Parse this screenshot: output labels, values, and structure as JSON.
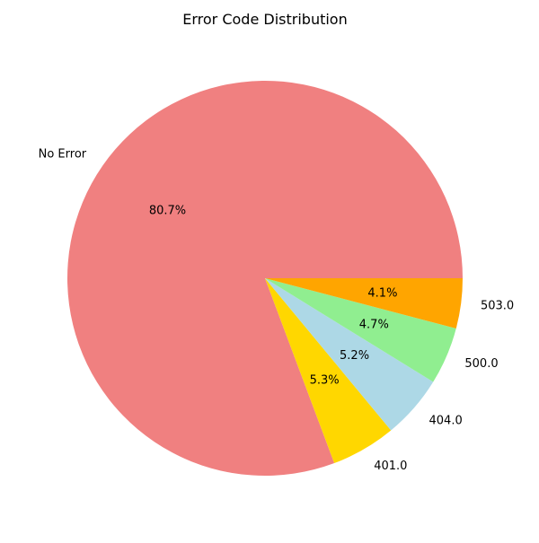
{
  "chart_data": {
    "type": "pie",
    "title": "Error Code Distribution",
    "start_angle_deg": 0,
    "direction": "counterclockwise",
    "slices": [
      {
        "label": "No Error",
        "percent": 80.7,
        "percent_label": "80.7%",
        "color": "#f08080"
      },
      {
        "label": "401.0",
        "percent": 5.3,
        "percent_label": "5.3%",
        "color": "#ffd700"
      },
      {
        "label": "404.0",
        "percent": 5.2,
        "percent_label": "5.2%",
        "color": "#add8e6"
      },
      {
        "label": "500.0",
        "percent": 4.7,
        "percent_label": "4.7%",
        "color": "#90ee90"
      },
      {
        "label": "503.0",
        "percent": 4.1,
        "percent_label": "4.1%",
        "color": "#ffa500"
      }
    ]
  }
}
